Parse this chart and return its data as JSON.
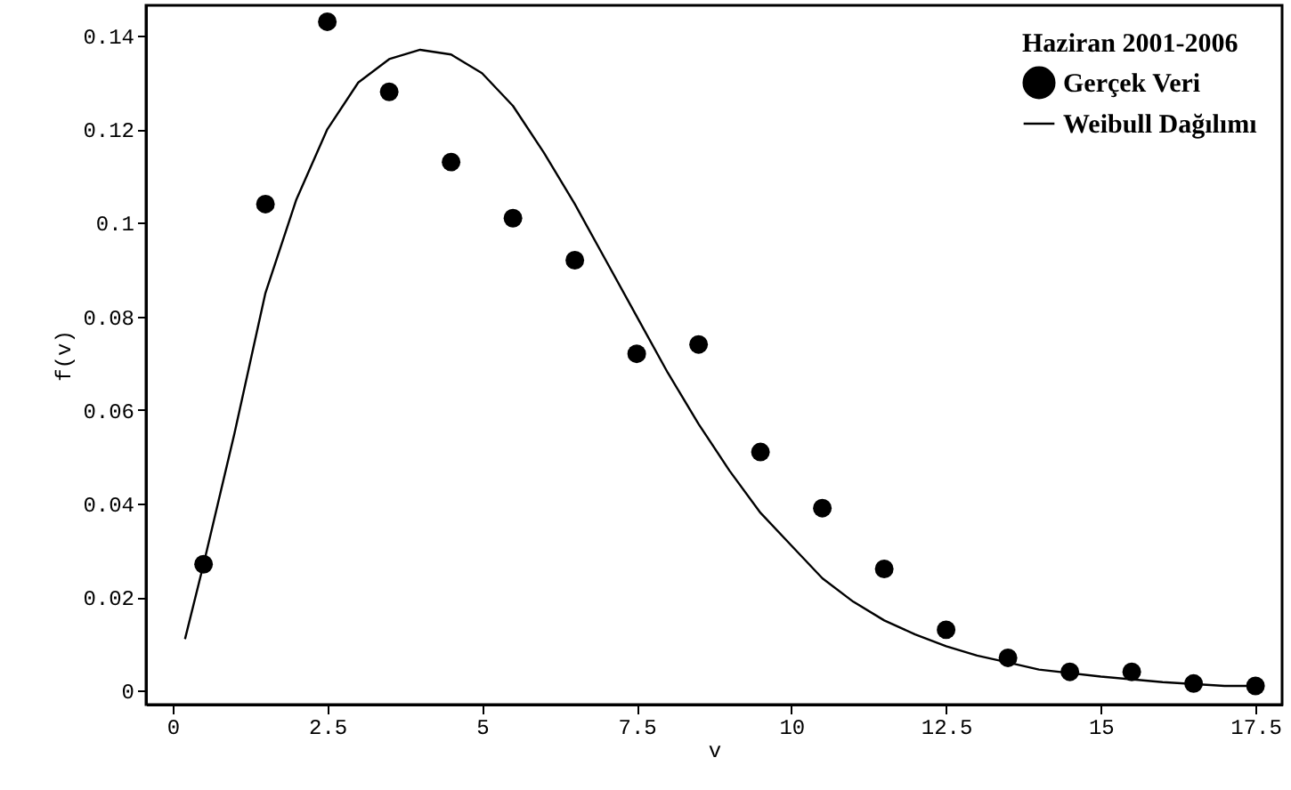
{
  "chart_data": {
    "type": "scatter",
    "xlabel": "v",
    "ylabel": "f(v)",
    "legend_title": "Haziran 2001-2006",
    "legend": "top right",
    "grid": false,
    "xlim": [
      -0.43,
      17.93
    ],
    "ylim": [
      -0.003,
      0.1465
    ],
    "xticks": [
      0,
      2.5,
      5,
      7.5,
      10,
      12.5,
      15,
      17.5
    ],
    "yticks": [
      0,
      0.02,
      0.04,
      0.06,
      0.08,
      0.1,
      0.12,
      0.14
    ],
    "x": [
      0.5,
      1.5,
      2.5,
      3.5,
      4.5,
      5.5,
      6.5,
      7.5,
      8.5,
      9.5,
      10.5,
      11.5,
      12.5,
      13.5,
      14.5,
      15.5,
      16.5,
      17.5
    ],
    "series": [
      {
        "name": "Gerçek Veri",
        "marker": "circle",
        "color": "#000000",
        "values": [
          0.027,
          0.104,
          0.143,
          0.128,
          0.113,
          0.101,
          0.092,
          0.072,
          0.074,
          0.051,
          0.039,
          0.026,
          0.013,
          0.007,
          0.004,
          0.004,
          0.0015,
          0.001
        ]
      },
      {
        "name": "Weibull Dağılımı",
        "type": "line",
        "line_style": "solid",
        "color": "#000000",
        "x": [
          0.2,
          0.5,
          1,
          1.5,
          2,
          2.5,
          3,
          3.5,
          4,
          4.5,
          5,
          5.5,
          6,
          6.5,
          7,
          7.5,
          8,
          8.5,
          9,
          9.5,
          10,
          10.5,
          11,
          11.5,
          12,
          12.5,
          13,
          13.5,
          14,
          15,
          16,
          17,
          17.5
        ],
        "values": [
          0.011,
          0.027,
          0.055,
          0.085,
          0.105,
          0.12,
          0.13,
          0.135,
          0.137,
          0.136,
          0.132,
          0.125,
          0.115,
          0.104,
          0.092,
          0.08,
          0.068,
          0.057,
          0.047,
          0.038,
          0.031,
          0.024,
          0.019,
          0.015,
          0.012,
          0.0095,
          0.0075,
          0.006,
          0.0045,
          0.003,
          0.0018,
          0.001,
          0.001
        ]
      }
    ]
  }
}
